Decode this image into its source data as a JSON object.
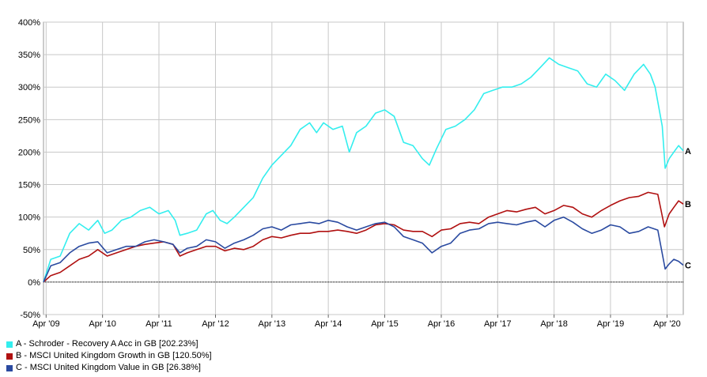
{
  "chart_data": {
    "type": "line",
    "title": "",
    "xlabel": "",
    "ylabel": "",
    "ylim": [
      -50,
      400
    ],
    "xlim": [
      "2009-03-15",
      "2020-07-15"
    ],
    "y_ticks": [
      -50,
      0,
      50,
      100,
      150,
      200,
      250,
      300,
      350,
      400
    ],
    "y_tick_labels": [
      "-50%",
      "0%",
      "50%",
      "100%",
      "150%",
      "200%",
      "250%",
      "300%",
      "350%",
      "400%"
    ],
    "x_ticks": [
      "2009-04-01",
      "2010-04-01",
      "2011-04-01",
      "2012-04-01",
      "2013-04-01",
      "2014-04-01",
      "2015-04-01",
      "2016-04-01",
      "2017-04-01",
      "2018-04-01",
      "2019-04-01",
      "2020-04-01"
    ],
    "x_tick_labels": [
      "Apr '09",
      "Apr '10",
      "Apr '11",
      "Apr '12",
      "Apr '13",
      "Apr '14",
      "Apr '15",
      "Apr '16",
      "Apr '17",
      "Apr '18",
      "Apr '19",
      "Apr '20"
    ],
    "grid": true,
    "legend_position": "bottom-left",
    "series": [
      {
        "name": "A - Schroder - Recovery A Acc in GB [202.23%]",
        "end_label": "A",
        "color": "#33eeee",
        "points": [
          [
            "2009-03-15",
            0
          ],
          [
            "2009-05-01",
            35
          ],
          [
            "2009-07-01",
            40
          ],
          [
            "2009-09-01",
            75
          ],
          [
            "2009-11-01",
            90
          ],
          [
            "2010-01-01",
            80
          ],
          [
            "2010-03-01",
            95
          ],
          [
            "2010-04-15",
            75
          ],
          [
            "2010-06-01",
            80
          ],
          [
            "2010-08-01",
            95
          ],
          [
            "2010-10-01",
            100
          ],
          [
            "2010-12-01",
            110
          ],
          [
            "2011-02-01",
            115
          ],
          [
            "2011-04-01",
            105
          ],
          [
            "2011-06-01",
            110
          ],
          [
            "2011-07-15",
            95
          ],
          [
            "2011-08-15",
            72
          ],
          [
            "2011-10-01",
            75
          ],
          [
            "2011-12-01",
            80
          ],
          [
            "2012-02-01",
            105
          ],
          [
            "2012-03-15",
            110
          ],
          [
            "2012-05-01",
            95
          ],
          [
            "2012-06-15",
            90
          ],
          [
            "2012-08-01",
            100
          ],
          [
            "2012-10-01",
            115
          ],
          [
            "2012-12-01",
            130
          ],
          [
            "2013-02-01",
            160
          ],
          [
            "2013-04-01",
            180
          ],
          [
            "2013-06-01",
            195
          ],
          [
            "2013-08-01",
            210
          ],
          [
            "2013-10-01",
            235
          ],
          [
            "2013-12-01",
            245
          ],
          [
            "2014-01-15",
            230
          ],
          [
            "2014-03-01",
            245
          ],
          [
            "2014-05-01",
            235
          ],
          [
            "2014-07-01",
            240
          ],
          [
            "2014-08-15",
            200
          ],
          [
            "2014-10-01",
            230
          ],
          [
            "2014-12-01",
            240
          ],
          [
            "2015-02-01",
            260
          ],
          [
            "2015-04-01",
            265
          ],
          [
            "2015-06-01",
            255
          ],
          [
            "2015-08-01",
            215
          ],
          [
            "2015-10-01",
            210
          ],
          [
            "2015-12-01",
            190
          ],
          [
            "2016-01-15",
            180
          ],
          [
            "2016-03-01",
            205
          ],
          [
            "2016-05-01",
            235
          ],
          [
            "2016-07-01",
            240
          ],
          [
            "2016-09-01",
            250
          ],
          [
            "2016-11-01",
            265
          ],
          [
            "2017-01-01",
            290
          ],
          [
            "2017-03-01",
            295
          ],
          [
            "2017-05-01",
            300
          ],
          [
            "2017-07-01",
            300
          ],
          [
            "2017-09-01",
            305
          ],
          [
            "2017-11-01",
            315
          ],
          [
            "2018-01-01",
            330
          ],
          [
            "2018-03-01",
            345
          ],
          [
            "2018-05-01",
            335
          ],
          [
            "2018-07-01",
            330
          ],
          [
            "2018-09-01",
            325
          ],
          [
            "2018-11-01",
            305
          ],
          [
            "2019-01-01",
            300
          ],
          [
            "2019-03-01",
            320
          ],
          [
            "2019-05-01",
            310
          ],
          [
            "2019-07-01",
            295
          ],
          [
            "2019-09-01",
            320
          ],
          [
            "2019-11-01",
            335
          ],
          [
            "2019-12-15",
            320
          ],
          [
            "2020-01-15",
            300
          ],
          [
            "2020-03-01",
            240
          ],
          [
            "2020-03-20",
            175
          ],
          [
            "2020-04-15",
            190
          ],
          [
            "2020-05-15",
            200
          ],
          [
            "2020-06-15",
            210
          ],
          [
            "2020-07-15",
            202
          ]
        ]
      },
      {
        "name": "B - MSCI United Kingdom Growth in GB [120.50%]",
        "end_label": "B",
        "color": "#b01010",
        "points": [
          [
            "2009-03-15",
            0
          ],
          [
            "2009-05-01",
            10
          ],
          [
            "2009-07-01",
            15
          ],
          [
            "2009-09-01",
            25
          ],
          [
            "2009-11-01",
            35
          ],
          [
            "2010-01-01",
            40
          ],
          [
            "2010-03-01",
            50
          ],
          [
            "2010-05-01",
            40
          ],
          [
            "2010-07-01",
            45
          ],
          [
            "2010-09-01",
            50
          ],
          [
            "2010-11-01",
            55
          ],
          [
            "2011-01-01",
            58
          ],
          [
            "2011-03-01",
            60
          ],
          [
            "2011-05-01",
            62
          ],
          [
            "2011-07-01",
            58
          ],
          [
            "2011-08-15",
            40
          ],
          [
            "2011-10-01",
            45
          ],
          [
            "2011-12-01",
            50
          ],
          [
            "2012-02-01",
            55
          ],
          [
            "2012-04-01",
            55
          ],
          [
            "2012-06-01",
            48
          ],
          [
            "2012-08-01",
            52
          ],
          [
            "2012-10-01",
            50
          ],
          [
            "2012-12-01",
            55
          ],
          [
            "2013-02-01",
            65
          ],
          [
            "2013-04-01",
            70
          ],
          [
            "2013-06-01",
            68
          ],
          [
            "2013-08-01",
            72
          ],
          [
            "2013-10-01",
            75
          ],
          [
            "2013-12-01",
            75
          ],
          [
            "2014-02-01",
            78
          ],
          [
            "2014-04-01",
            78
          ],
          [
            "2014-06-01",
            80
          ],
          [
            "2014-08-01",
            78
          ],
          [
            "2014-10-01",
            75
          ],
          [
            "2014-12-01",
            80
          ],
          [
            "2015-02-01",
            88
          ],
          [
            "2015-04-01",
            90
          ],
          [
            "2015-06-01",
            88
          ],
          [
            "2015-08-01",
            80
          ],
          [
            "2015-10-01",
            78
          ],
          [
            "2015-12-01",
            78
          ],
          [
            "2016-02-01",
            70
          ],
          [
            "2016-04-01",
            80
          ],
          [
            "2016-06-01",
            82
          ],
          [
            "2016-08-01",
            90
          ],
          [
            "2016-10-01",
            92
          ],
          [
            "2016-12-01",
            90
          ],
          [
            "2017-02-01",
            100
          ],
          [
            "2017-04-01",
            105
          ],
          [
            "2017-06-01",
            110
          ],
          [
            "2017-08-01",
            108
          ],
          [
            "2017-10-01",
            112
          ],
          [
            "2017-12-01",
            115
          ],
          [
            "2018-02-01",
            105
          ],
          [
            "2018-04-01",
            110
          ],
          [
            "2018-06-01",
            118
          ],
          [
            "2018-08-01",
            115
          ],
          [
            "2018-10-01",
            105
          ],
          [
            "2018-12-01",
            100
          ],
          [
            "2019-02-01",
            110
          ],
          [
            "2019-04-01",
            118
          ],
          [
            "2019-06-01",
            125
          ],
          [
            "2019-08-01",
            130
          ],
          [
            "2019-10-01",
            132
          ],
          [
            "2019-12-01",
            138
          ],
          [
            "2020-02-01",
            135
          ],
          [
            "2020-03-15",
            85
          ],
          [
            "2020-04-15",
            105
          ],
          [
            "2020-05-15",
            115
          ],
          [
            "2020-06-15",
            125
          ],
          [
            "2020-07-15",
            120
          ]
        ]
      },
      {
        "name": "C - MSCI United Kingdom Value in GB [26.38%]",
        "end_label": "C",
        "color": "#2a4aa0",
        "points": [
          [
            "2009-03-15",
            0
          ],
          [
            "2009-05-01",
            25
          ],
          [
            "2009-07-01",
            30
          ],
          [
            "2009-09-01",
            45
          ],
          [
            "2009-11-01",
            55
          ],
          [
            "2010-01-01",
            60
          ],
          [
            "2010-03-01",
            62
          ],
          [
            "2010-05-01",
            45
          ],
          [
            "2010-07-01",
            50
          ],
          [
            "2010-09-01",
            55
          ],
          [
            "2010-11-01",
            55
          ],
          [
            "2011-01-01",
            62
          ],
          [
            "2011-03-01",
            65
          ],
          [
            "2011-05-01",
            62
          ],
          [
            "2011-07-01",
            58
          ],
          [
            "2011-08-15",
            45
          ],
          [
            "2011-10-01",
            52
          ],
          [
            "2011-12-01",
            55
          ],
          [
            "2012-02-01",
            65
          ],
          [
            "2012-04-01",
            62
          ],
          [
            "2012-06-01",
            52
          ],
          [
            "2012-08-01",
            60
          ],
          [
            "2012-10-01",
            65
          ],
          [
            "2012-12-01",
            72
          ],
          [
            "2013-02-01",
            82
          ],
          [
            "2013-04-01",
            85
          ],
          [
            "2013-06-01",
            80
          ],
          [
            "2013-08-01",
            88
          ],
          [
            "2013-10-01",
            90
          ],
          [
            "2013-12-01",
            92
          ],
          [
            "2014-02-01",
            90
          ],
          [
            "2014-04-01",
            95
          ],
          [
            "2014-06-01",
            92
          ],
          [
            "2014-08-01",
            85
          ],
          [
            "2014-10-01",
            80
          ],
          [
            "2014-12-01",
            85
          ],
          [
            "2015-02-01",
            90
          ],
          [
            "2015-04-01",
            92
          ],
          [
            "2015-06-01",
            85
          ],
          [
            "2015-08-01",
            70
          ],
          [
            "2015-10-01",
            65
          ],
          [
            "2015-12-01",
            60
          ],
          [
            "2016-02-01",
            45
          ],
          [
            "2016-04-01",
            55
          ],
          [
            "2016-06-01",
            60
          ],
          [
            "2016-08-01",
            75
          ],
          [
            "2016-10-01",
            80
          ],
          [
            "2016-12-01",
            82
          ],
          [
            "2017-02-01",
            90
          ],
          [
            "2017-04-01",
            92
          ],
          [
            "2017-06-01",
            90
          ],
          [
            "2017-08-01",
            88
          ],
          [
            "2017-10-01",
            92
          ],
          [
            "2017-12-01",
            95
          ],
          [
            "2018-02-01",
            85
          ],
          [
            "2018-04-01",
            95
          ],
          [
            "2018-06-01",
            100
          ],
          [
            "2018-08-01",
            92
          ],
          [
            "2018-10-01",
            82
          ],
          [
            "2018-12-01",
            75
          ],
          [
            "2019-02-01",
            80
          ],
          [
            "2019-04-01",
            88
          ],
          [
            "2019-06-01",
            85
          ],
          [
            "2019-08-01",
            75
          ],
          [
            "2019-10-01",
            78
          ],
          [
            "2019-12-01",
            85
          ],
          [
            "2020-02-01",
            80
          ],
          [
            "2020-03-20",
            20
          ],
          [
            "2020-04-15",
            28
          ],
          [
            "2020-05-15",
            35
          ],
          [
            "2020-06-15",
            32
          ],
          [
            "2020-07-15",
            26
          ]
        ]
      }
    ]
  }
}
